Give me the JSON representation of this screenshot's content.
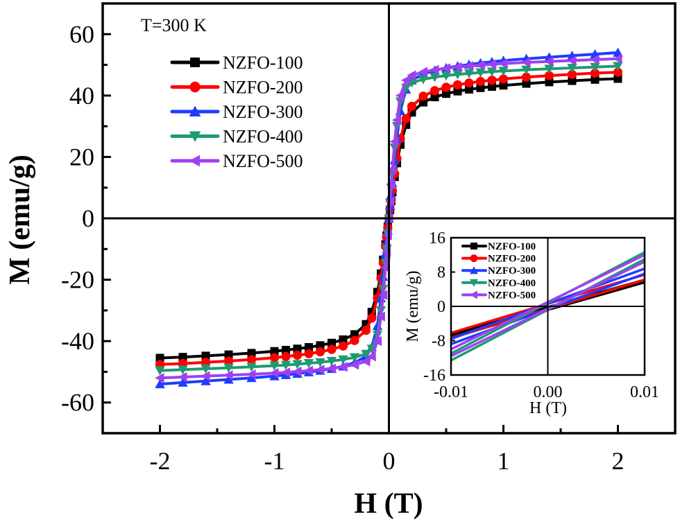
{
  "chart_data": [
    {
      "type": "line",
      "title": "",
      "annotation": "T=300 K",
      "xlabel": "H (T)",
      "ylabel": "M (emu/g)",
      "xlim": [
        -2.5,
        2.5
      ],
      "ylim": [
        -70,
        70
      ],
      "xticks": [
        -2,
        -1,
        0,
        1,
        2
      ],
      "xtick_labels": [
        "-2",
        "-1",
        "0",
        "1",
        "2"
      ],
      "yticks": [
        -60,
        -40,
        -20,
        0,
        20,
        40,
        60
      ],
      "ytick_labels": [
        "-60",
        "-40",
        "-20",
        "0",
        "20",
        "40",
        "60"
      ],
      "grid": false,
      "legend_position": "top-left",
      "x": [
        -2.0,
        -1.8,
        -1.6,
        -1.4,
        -1.2,
        -1.0,
        -0.9,
        -0.8,
        -0.7,
        -0.6,
        -0.5,
        -0.4,
        -0.3,
        -0.2,
        -0.15,
        -0.1,
        -0.07,
        -0.05,
        -0.03,
        -0.02,
        -0.01,
        0.0,
        0.01,
        0.02,
        0.03,
        0.05,
        0.07,
        0.1,
        0.15,
        0.2,
        0.3,
        0.4,
        0.5,
        0.6,
        0.7,
        0.8,
        0.9,
        1.0,
        1.2,
        1.4,
        1.6,
        1.8,
        2.0
      ],
      "series": [
        {
          "name": "NZFO-100",
          "color": "#000000",
          "marker": "square",
          "values": [
            -45.5,
            -45.2,
            -44.8,
            -44.4,
            -43.9,
            -43.3,
            -42.9,
            -42.5,
            -42.0,
            -41.4,
            -40.6,
            -39.5,
            -37.8,
            -34.5,
            -30.5,
            -24.0,
            -18.0,
            -13.5,
            -8.5,
            -5.6,
            -2.8,
            0.0,
            2.8,
            5.6,
            8.5,
            13.5,
            18.0,
            24.0,
            30.5,
            34.5,
            37.8,
            39.5,
            40.6,
            41.4,
            42.0,
            42.5,
            42.9,
            43.3,
            43.9,
            44.4,
            44.8,
            45.2,
            45.5
          ]
        },
        {
          "name": "NZFO-200",
          "color": "#ff0000",
          "marker": "circle",
          "values": [
            -47.6,
            -47.3,
            -46.9,
            -46.5,
            -46.0,
            -45.4,
            -45.0,
            -44.6,
            -44.1,
            -43.5,
            -42.7,
            -41.6,
            -39.8,
            -36.5,
            -32.5,
            -26.0,
            -19.5,
            -14.5,
            -9.0,
            -6.0,
            -3.0,
            0.0,
            3.0,
            6.0,
            9.0,
            14.5,
            19.5,
            26.0,
            32.5,
            36.5,
            39.8,
            41.6,
            42.7,
            43.5,
            44.1,
            44.6,
            45.0,
            45.4,
            46.0,
            46.5,
            46.9,
            47.3,
            47.6
          ]
        },
        {
          "name": "NZFO-300",
          "color": "#1f3cff",
          "marker": "triangle-up",
          "values": [
            -54.0,
            -53.5,
            -53.0,
            -52.5,
            -52.0,
            -51.4,
            -51.0,
            -50.6,
            -50.1,
            -49.6,
            -49.0,
            -48.2,
            -47.0,
            -45.0,
            -42.0,
            -35.0,
            -26.0,
            -19.0,
            -11.5,
            -7.8,
            -3.9,
            0.0,
            3.9,
            7.8,
            11.5,
            19.0,
            26.0,
            35.0,
            42.0,
            45.0,
            47.0,
            48.2,
            49.0,
            49.6,
            50.1,
            50.6,
            51.0,
            51.4,
            52.0,
            52.5,
            53.0,
            53.5,
            54.0
          ]
        },
        {
          "name": "NZFO-400",
          "color": "#1f9a70",
          "marker": "triangle-down",
          "values": [
            -49.6,
            -49.3,
            -49.0,
            -48.7,
            -48.4,
            -48.0,
            -47.8,
            -47.5,
            -47.2,
            -46.9,
            -46.5,
            -46.0,
            -45.3,
            -44.2,
            -42.5,
            -38.0,
            -30.0,
            -23.0,
            -14.5,
            -10.0,
            -5.0,
            0.0,
            5.0,
            10.0,
            14.5,
            23.0,
            30.0,
            38.0,
            42.5,
            44.2,
            45.3,
            46.0,
            46.5,
            46.9,
            47.2,
            47.5,
            47.8,
            48.0,
            48.4,
            48.7,
            49.0,
            49.3,
            49.6
          ]
        },
        {
          "name": "NZFO-500",
          "color": "#a040f0",
          "marker": "triangle-left",
          "values": [
            -52.0,
            -51.7,
            -51.4,
            -51.1,
            -50.8,
            -50.4,
            -50.2,
            -49.9,
            -49.6,
            -49.3,
            -48.9,
            -48.4,
            -47.7,
            -46.6,
            -45.0,
            -40.0,
            -32.0,
            -25.0,
            -16.0,
            -11.0,
            -5.5,
            0.0,
            5.5,
            11.0,
            16.0,
            25.0,
            32.0,
            40.0,
            45.0,
            46.6,
            47.7,
            48.4,
            48.9,
            49.3,
            49.6,
            49.9,
            50.2,
            50.4,
            50.8,
            51.1,
            51.4,
            51.7,
            52.0
          ]
        }
      ]
    },
    {
      "type": "line",
      "title": "",
      "xlabel": "H (T)",
      "ylabel": "M (emu/g)",
      "xlim": [
        -0.01,
        0.01
      ],
      "ylim": [
        -16,
        16
      ],
      "xticks": [
        -0.01,
        0.0,
        0.01
      ],
      "xtick_labels": [
        "-0.01",
        "0.00",
        "0.01"
      ],
      "yticks": [
        -16,
        -8,
        0,
        8,
        16
      ],
      "ytick_labels": [
        "-16",
        "-8",
        "0",
        "8",
        "16"
      ],
      "grid": false,
      "legend_position": "top-left",
      "series": [
        {
          "name": "NZFO-100",
          "color": "#000000",
          "marker": "square",
          "branches": [
            {
              "x": [
                -0.01,
                0.01
              ],
              "y": [
                -6.6,
                6.2
              ]
            },
            {
              "x": [
                -0.01,
                0.01
              ],
              "y": [
                -7.2,
                5.6
              ]
            }
          ]
        },
        {
          "name": "NZFO-200",
          "color": "#ff0000",
          "marker": "circle",
          "branches": [
            {
              "x": [
                -0.01,
                0.01
              ],
              "y": [
                -6.2,
                7.4
              ]
            },
            {
              "x": [
                -0.01,
                0.01
              ],
              "y": [
                -7.4,
                6.2
              ]
            }
          ]
        },
        {
          "name": "NZFO-300",
          "color": "#1f3cff",
          "marker": "triangle-up",
          "branches": [
            {
              "x": [
                -0.01,
                0.01
              ],
              "y": [
                -7.6,
                8.8
              ]
            },
            {
              "x": [
                -0.01,
                0.01
              ],
              "y": [
                -8.8,
                7.6
              ]
            }
          ]
        },
        {
          "name": "NZFO-400",
          "color": "#1f9a70",
          "marker": "triangle-down",
          "branches": [
            {
              "x": [
                -0.01,
                0.01
              ],
              "y": [
                -11.0,
                12.6
              ]
            },
            {
              "x": [
                -0.01,
                0.01
              ],
              "y": [
                -12.6,
                11.0
              ]
            }
          ]
        },
        {
          "name": "NZFO-500",
          "color": "#a040f0",
          "marker": "triangle-left",
          "branches": [
            {
              "x": [
                -0.01,
                0.01
              ],
              "y": [
                -10.0,
                12.0
              ]
            },
            {
              "x": [
                -0.01,
                0.01
              ],
              "y": [
                -11.6,
                10.4
              ]
            }
          ]
        }
      ]
    }
  ]
}
